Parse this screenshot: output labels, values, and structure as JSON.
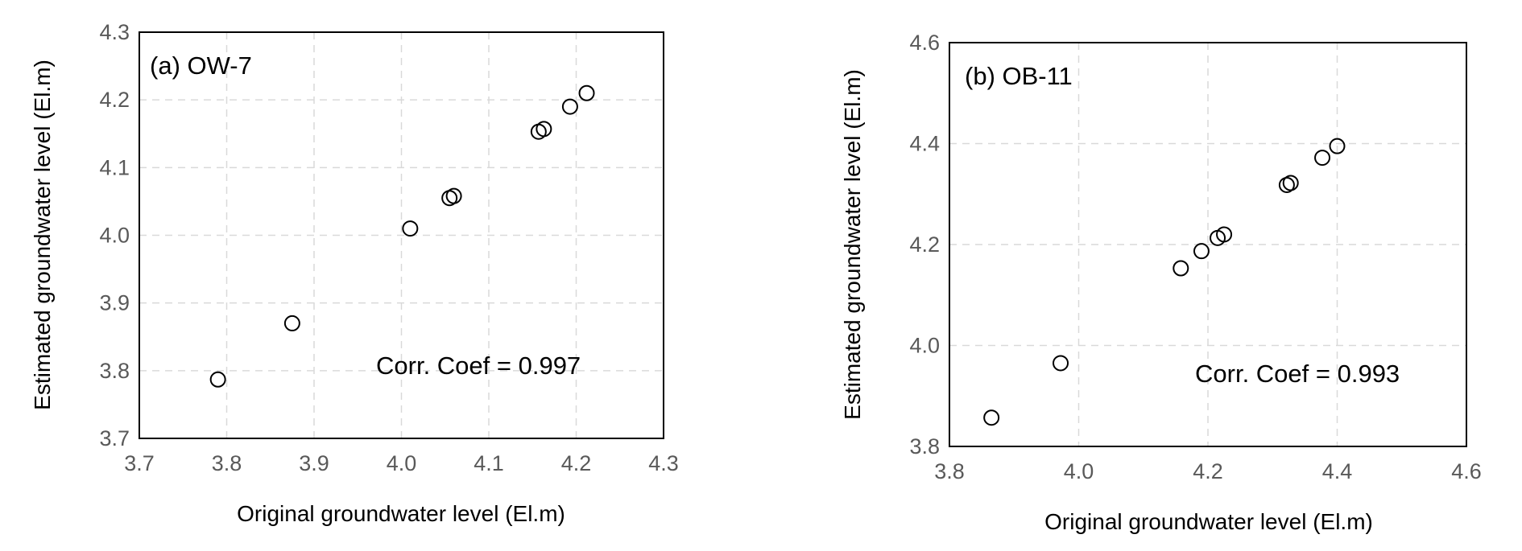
{
  "chart_data": [
    {
      "type": "scatter",
      "panel_label": "(a) OW-7",
      "annotation": "Corr. Coef = 0.997",
      "xlabel": "Original groundwater level (El.m)",
      "ylabel": "Estimated groundwater level (El.m)",
      "xlim": [
        3.7,
        4.3
      ],
      "ylim": [
        3.7,
        4.3
      ],
      "xticks": [
        3.7,
        3.8,
        3.9,
        4.0,
        4.1,
        4.2,
        4.3
      ],
      "yticks": [
        3.7,
        3.8,
        3.9,
        4.0,
        4.1,
        4.2,
        4.3
      ],
      "xtick_labels": [
        "3.7",
        "3.8",
        "3.9",
        "4.0",
        "4.1",
        "4.2",
        "4.3"
      ],
      "ytick_labels": [
        "3.7",
        "3.8",
        "3.9",
        "4.0",
        "4.1",
        "4.2",
        "4.3"
      ],
      "grid": true,
      "x": [
        3.79,
        3.875,
        4.01,
        4.055,
        4.06,
        4.157,
        4.163,
        4.193,
        4.212
      ],
      "y": [
        3.787,
        3.87,
        4.01,
        4.055,
        4.058,
        4.153,
        4.157,
        4.19,
        4.21
      ]
    },
    {
      "type": "scatter",
      "panel_label": "(b) OB-11",
      "annotation": "Corr. Coef = 0.993",
      "xlabel": "Original groundwater level (El.m)",
      "ylabel": "Estimated groundwater level (El.m)",
      "xlim": [
        3.8,
        4.6
      ],
      "ylim": [
        3.8,
        4.6
      ],
      "xticks": [
        3.8,
        4.0,
        4.2,
        4.4,
        4.6
      ],
      "yticks": [
        3.8,
        4.0,
        4.2,
        4.4,
        4.6
      ],
      "xtick_labels": [
        "3.8",
        "4.0",
        "4.2",
        "4.4",
        "4.6"
      ],
      "ytick_labels": [
        "3.8",
        "4.0",
        "4.2",
        "4.4",
        "4.6"
      ],
      "grid": true,
      "x": [
        3.865,
        3.972,
        4.158,
        4.19,
        4.215,
        4.225,
        4.322,
        4.328,
        4.377,
        4.4
      ],
      "y": [
        3.857,
        3.965,
        4.153,
        4.187,
        4.213,
        4.22,
        4.318,
        4.322,
        4.372,
        4.395
      ]
    }
  ]
}
